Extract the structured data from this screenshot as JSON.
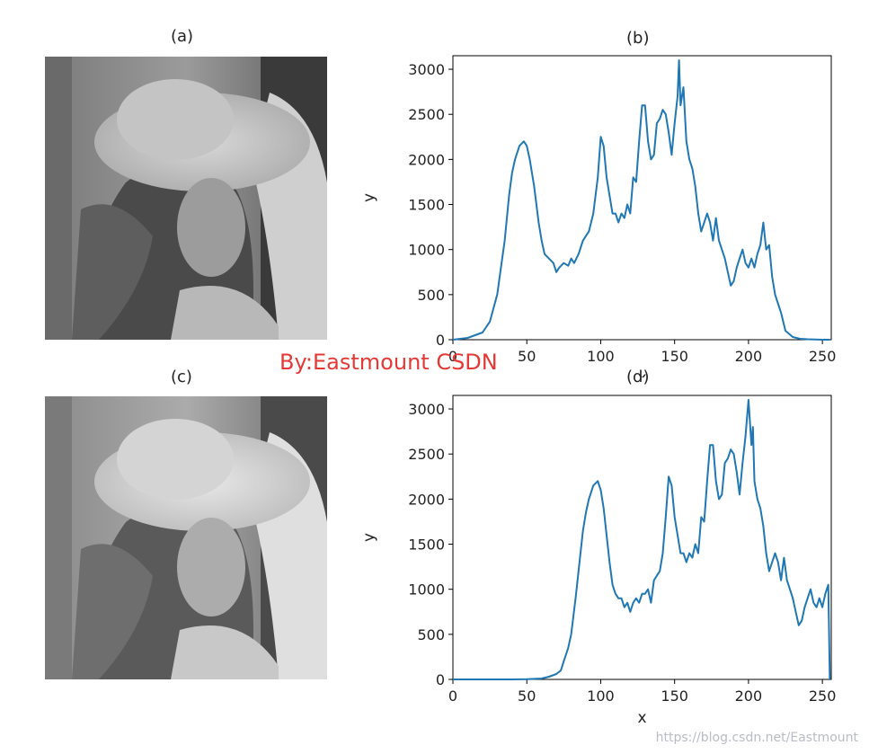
{
  "panels": {
    "a": {
      "title": "(a)"
    },
    "b": {
      "title": "(b)"
    },
    "c": {
      "title": "(c)"
    },
    "d": {
      "title": "(d)"
    }
  },
  "watermark": "By:Eastmount CSDN",
  "credit": "https://blog.csdn.net/Eastmount",
  "colors": {
    "line": "#1f77b4",
    "watermark": "#e53935"
  },
  "chart_data": [
    {
      "type": "line",
      "title": "(b)",
      "xlabel": "x",
      "ylabel": "y",
      "xlim": [
        0,
        256
      ],
      "ylim": [
        0,
        3150
      ],
      "xticks": [
        0,
        50,
        100,
        150,
        200,
        250
      ],
      "yticks": [
        0,
        500,
        1000,
        1500,
        2000,
        2500,
        3000
      ],
      "series": [
        {
          "x": [
            0,
            10,
            20,
            25,
            30,
            35,
            38,
            40,
            42,
            45,
            48,
            50,
            52,
            55,
            58,
            60,
            62,
            65,
            68,
            70,
            72,
            75,
            78,
            80,
            82,
            85,
            88,
            90,
            92,
            95,
            98,
            100,
            102,
            104,
            106,
            108,
            110,
            112,
            114,
            116,
            118,
            120,
            122,
            124,
            126,
            128,
            130,
            132,
            134,
            136,
            138,
            140,
            142,
            144,
            146,
            148,
            150,
            152,
            153,
            154,
            156,
            158,
            160,
            162,
            164,
            166,
            168,
            170,
            172,
            174,
            176,
            178,
            180,
            182,
            184,
            186,
            188,
            190,
            192,
            194,
            196,
            198,
            200,
            202,
            204,
            206,
            208,
            210,
            212,
            214,
            216,
            218,
            220,
            222,
            225,
            230,
            235,
            240,
            245,
            250,
            255
          ],
          "y": [
            0,
            20,
            80,
            200,
            500,
            1100,
            1600,
            1850,
            2000,
            2150,
            2200,
            2150,
            2000,
            1700,
            1300,
            1100,
            950,
            900,
            850,
            750,
            800,
            850,
            820,
            900,
            850,
            950,
            1100,
            1150,
            1200,
            1400,
            1800,
            2250,
            2150,
            1800,
            1600,
            1400,
            1400,
            1300,
            1400,
            1350,
            1500,
            1400,
            1800,
            1750,
            2200,
            2600,
            2600,
            2200,
            2000,
            2050,
            2400,
            2450,
            2550,
            2500,
            2300,
            2050,
            2400,
            2700,
            3100,
            2600,
            2800,
            2200,
            2000,
            1900,
            1700,
            1400,
            1200,
            1300,
            1400,
            1300,
            1100,
            1350,
            1100,
            1000,
            900,
            750,
            600,
            650,
            800,
            900,
            1000,
            850,
            800,
            900,
            800,
            950,
            1050,
            1300,
            1000,
            1050,
            700,
            500,
            400,
            300,
            100,
            30,
            10,
            5,
            2,
            0,
            0
          ]
        }
      ]
    },
    {
      "type": "line",
      "title": "(d)",
      "xlabel": "x",
      "ylabel": "y",
      "xlim": [
        0,
        256
      ],
      "ylim": [
        0,
        3150
      ],
      "xticks": [
        0,
        50,
        100,
        150,
        200,
        250
      ],
      "yticks": [
        0,
        500,
        1000,
        1500,
        2000,
        2500,
        3000
      ],
      "series": [
        {
          "x": [
            0,
            20,
            40,
            50,
            60,
            65,
            70,
            73,
            75,
            78,
            80,
            83,
            86,
            88,
            90,
            92,
            95,
            98,
            100,
            102,
            104,
            106,
            108,
            110,
            112,
            114,
            116,
            118,
            120,
            122,
            124,
            126,
            128,
            130,
            132,
            134,
            136,
            138,
            140,
            142,
            144,
            146,
            148,
            150,
            152,
            154,
            156,
            158,
            160,
            162,
            164,
            166,
            168,
            170,
            172,
            174,
            176,
            178,
            180,
            182,
            184,
            186,
            188,
            190,
            192,
            194,
            196,
            198,
            200,
            202,
            203,
            204,
            206,
            208,
            210,
            212,
            214,
            216,
            218,
            220,
            222,
            224,
            226,
            228,
            230,
            232,
            234,
            236,
            238,
            240,
            242,
            244,
            246,
            248,
            250,
            252,
            254,
            255
          ],
          "y": [
            0,
            0,
            0,
            2,
            10,
            30,
            60,
            100,
            200,
            350,
            500,
            900,
            1350,
            1650,
            1850,
            2000,
            2150,
            2200,
            2100,
            1900,
            1600,
            1300,
            1050,
            950,
            900,
            900,
            800,
            850,
            750,
            850,
            900,
            850,
            950,
            950,
            1000,
            850,
            1100,
            1150,
            1200,
            1400,
            1800,
            2250,
            2150,
            1800,
            1600,
            1400,
            1400,
            1300,
            1400,
            1350,
            1500,
            1400,
            1800,
            1750,
            2200,
            2600,
            2600,
            2200,
            2000,
            2050,
            2400,
            2450,
            2550,
            2500,
            2300,
            2050,
            2400,
            2700,
            3100,
            2600,
            2800,
            2200,
            2000,
            1900,
            1700,
            1400,
            1200,
            1300,
            1400,
            1300,
            1100,
            1350,
            1100,
            1000,
            900,
            750,
            600,
            650,
            800,
            900,
            1000,
            850,
            800,
            900,
            800,
            950,
            1050,
            0
          ]
        }
      ]
    }
  ]
}
